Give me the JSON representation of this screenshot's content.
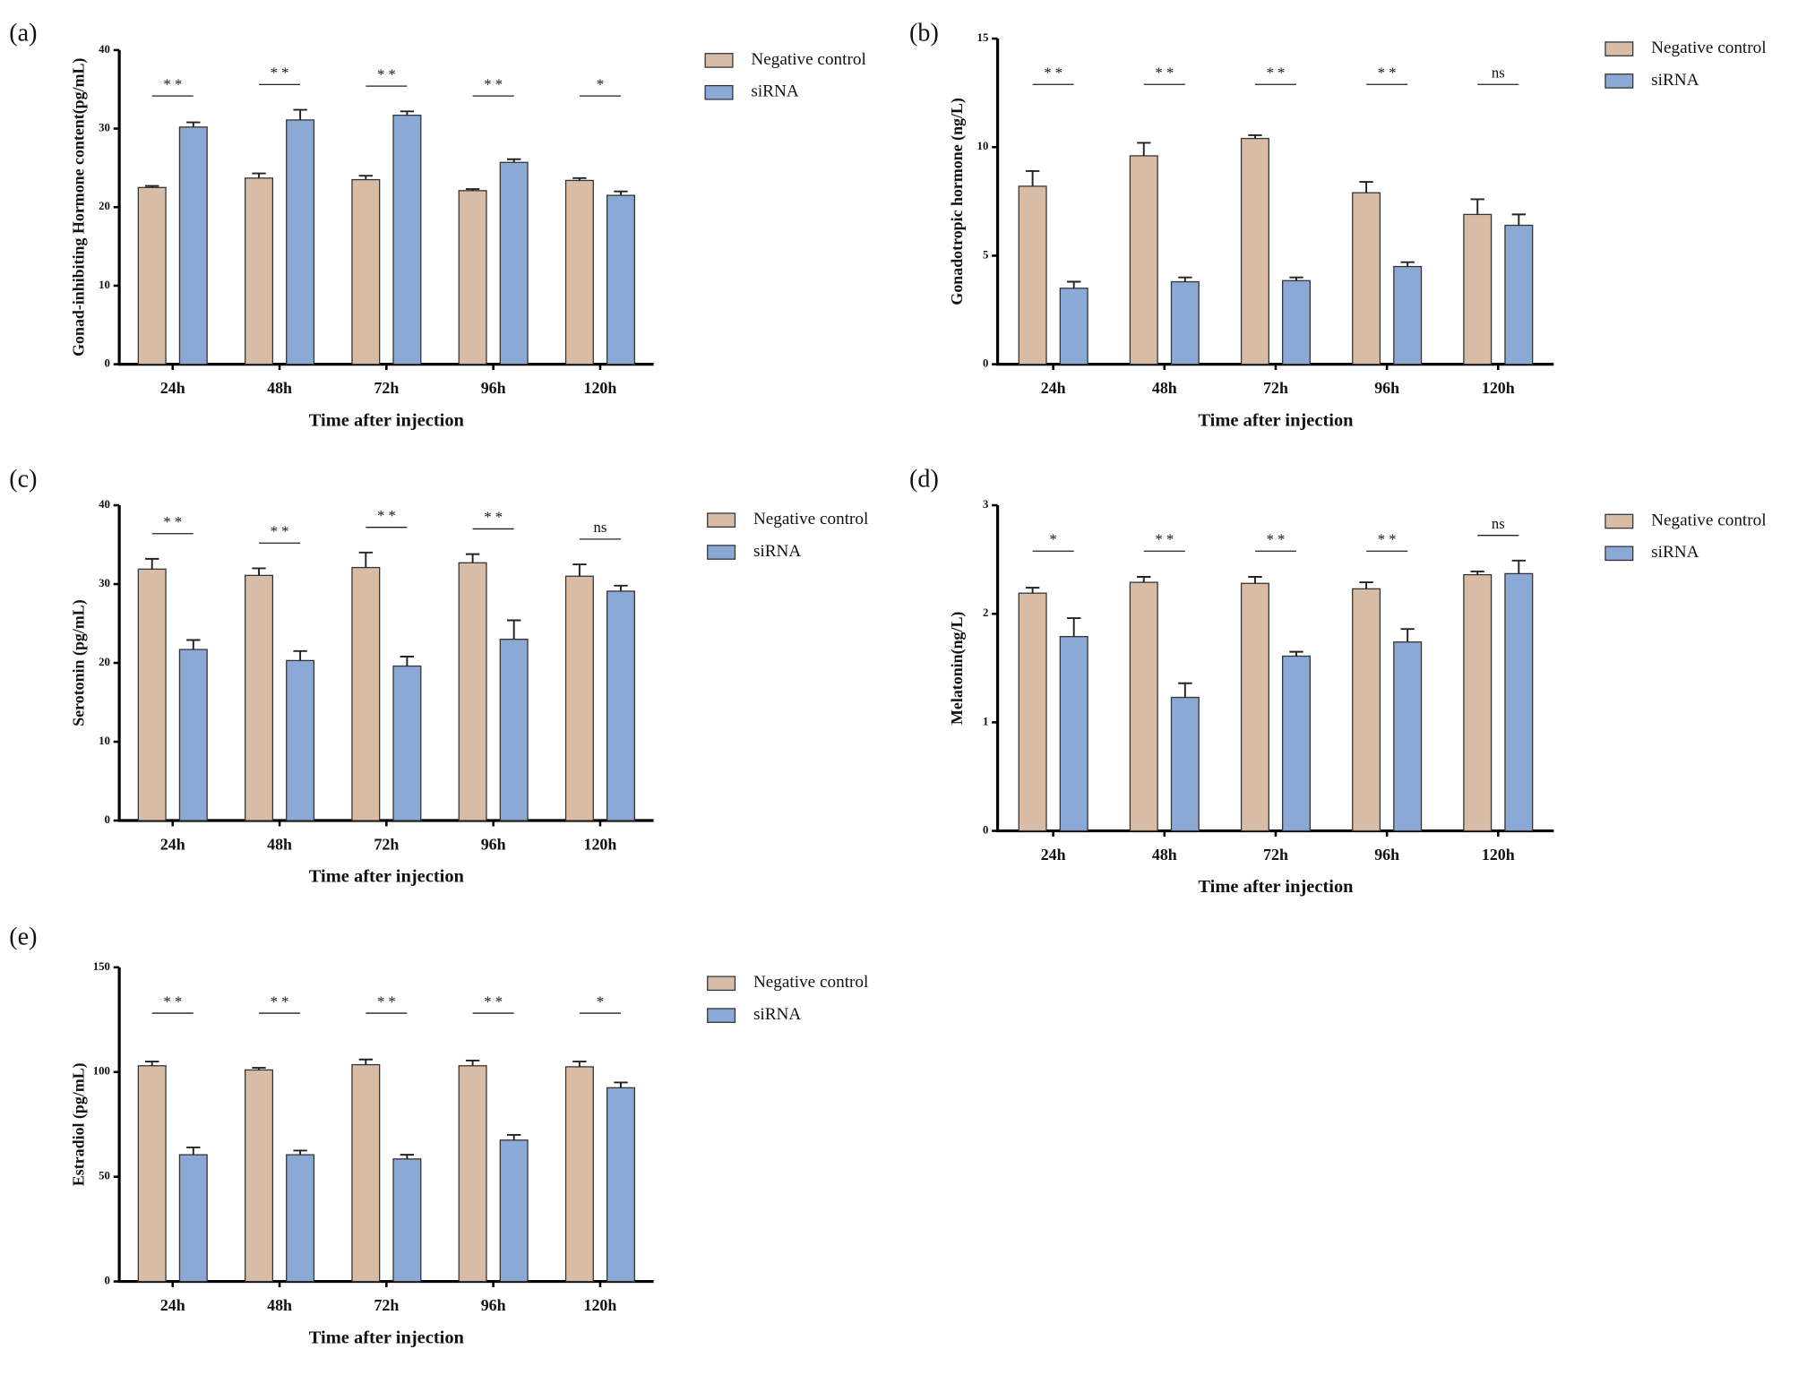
{
  "chart_data": [
    {
      "type": "bar",
      "panel": "(a)",
      "y_label": "Gonad-inhibiting Hormone content(pg/mL)",
      "x_label": "Time after injection",
      "categories": [
        "24h",
        "48h",
        "72h",
        "96h",
        "120h"
      ],
      "series": [
        {
          "name": "Negative control",
          "color": "#d9bca5",
          "values": [
            22.5,
            23.7,
            23.5,
            22.1,
            23.4
          ],
          "errors": [
            0.2,
            0.6,
            0.5,
            0.2,
            0.3
          ]
        },
        {
          "name": "siRNA",
          "color": "#8aa9d4",
          "values": [
            30.2,
            31.1,
            31.7,
            25.7,
            21.5
          ],
          "errors": [
            0.6,
            1.3,
            0.5,
            0.4,
            0.5
          ]
        }
      ],
      "significance": [
        "* *",
        "* *",
        "* *",
        "* *",
        "*"
      ],
      "ylim": [
        0,
        40
      ],
      "yticks": [
        0,
        10,
        20,
        30,
        40
      ]
    },
    {
      "type": "bar",
      "panel": "(b)",
      "y_label": "Gonadotropic hormone (ng/L)",
      "x_label": "Time after injection",
      "categories": [
        "24h",
        "48h",
        "72h",
        "96h",
        "120h"
      ],
      "series": [
        {
          "name": "Negative control",
          "color": "#d9bca5",
          "values": [
            8.2,
            9.6,
            10.4,
            7.9,
            6.9
          ],
          "errors": [
            0.7,
            0.6,
            0.15,
            0.5,
            0.7
          ]
        },
        {
          "name": "siRNA",
          "color": "#8aa9d4",
          "values": [
            3.5,
            3.8,
            3.85,
            4.5,
            6.4
          ],
          "errors": [
            0.3,
            0.2,
            0.15,
            0.2,
            0.5
          ]
        }
      ],
      "significance": [
        "* *",
        "* *",
        "* *",
        "* *",
        "ns"
      ],
      "ylim": [
        0,
        15
      ],
      "yticks": [
        0,
        5,
        10,
        15
      ]
    },
    {
      "type": "bar",
      "panel": "(c)",
      "y_label": "Serotonin (pg/mL)",
      "x_label": "Time after injection",
      "categories": [
        "24h",
        "48h",
        "72h",
        "96h",
        "120h"
      ],
      "series": [
        {
          "name": "Negative control",
          "color": "#d9bca5",
          "values": [
            31.9,
            31.1,
            32.1,
            32.7,
            31.0
          ],
          "errors": [
            1.3,
            0.9,
            1.9,
            1.1,
            1.5
          ]
        },
        {
          "name": "siRNA",
          "color": "#8aa9d4",
          "values": [
            21.7,
            20.3,
            19.6,
            23.0,
            29.1
          ],
          "errors": [
            1.2,
            1.2,
            1.2,
            2.4,
            0.7
          ]
        }
      ],
      "significance": [
        "* *",
        "* *",
        "* *",
        "* *",
        "ns"
      ],
      "ylim": [
        0,
        40
      ],
      "yticks": [
        0,
        10,
        20,
        30,
        40
      ]
    },
    {
      "type": "bar",
      "panel": "(d)",
      "y_label": "Melatonin(ng/L)",
      "x_label": "Time after injection",
      "categories": [
        "24h",
        "48h",
        "72h",
        "96h",
        "120h"
      ],
      "series": [
        {
          "name": "Negative control",
          "color": "#d9bca5",
          "values": [
            2.19,
            2.29,
            2.28,
            2.23,
            2.36
          ],
          "errors": [
            0.05,
            0.05,
            0.06,
            0.06,
            0.03
          ]
        },
        {
          "name": "siRNA",
          "color": "#8aa9d4",
          "values": [
            1.79,
            1.23,
            1.61,
            1.74,
            2.37
          ],
          "errors": [
            0.17,
            0.13,
            0.04,
            0.12,
            0.12
          ]
        }
      ],
      "significance": [
        "*",
        "* *",
        "* *",
        "* *",
        "ns"
      ],
      "ylim": [
        0,
        3
      ],
      "yticks": [
        0,
        1,
        2,
        3
      ]
    },
    {
      "type": "bar",
      "panel": "(e)",
      "y_label": "Estradiol (pg/mL)",
      "x_label": "Time after injection",
      "categories": [
        "24h",
        "48h",
        "72h",
        "96h",
        "120h"
      ],
      "series": [
        {
          "name": "Negative control",
          "color": "#d9bca5",
          "values": [
            103,
            101,
            103.5,
            103,
            102.5
          ],
          "errors": [
            2,
            1,
            2.5,
            2.5,
            2.5
          ]
        },
        {
          "name": "siRNA",
          "color": "#8aa9d4",
          "values": [
            60.5,
            60.5,
            58.5,
            67.5,
            92.5
          ],
          "errors": [
            3.5,
            2,
            2,
            2.5,
            2.5
          ]
        }
      ],
      "significance": [
        "* *",
        "* *",
        "* *",
        "* *",
        "*"
      ],
      "ylim": [
        0,
        150
      ],
      "yticks": [
        0,
        50,
        100,
        150
      ]
    }
  ]
}
